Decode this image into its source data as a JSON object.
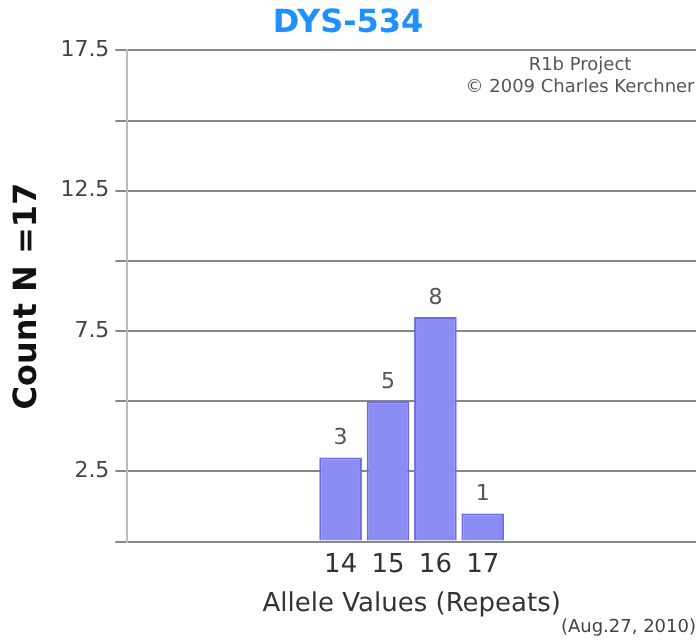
{
  "chart_data": {
    "type": "bar",
    "title": "DYS-534",
    "xlabel": "Allele Values (Repeats)",
    "ylabel": "Count N =17",
    "categories": [
      null,
      null,
      null,
      null,
      "14",
      "15",
      "16",
      "17",
      null,
      null,
      null,
      null
    ],
    "values": [
      0,
      0,
      0,
      0,
      3,
      5,
      8,
      1,
      0,
      0,
      0,
      0
    ],
    "value_labels": [
      null,
      null,
      null,
      null,
      "3",
      "5",
      "8",
      "1",
      null,
      null,
      null,
      null
    ],
    "color": "#8c8cf5",
    "ylim": [
      0,
      17.5
    ],
    "yticks": [
      {
        "value": 0,
        "label": null
      },
      2.5,
      {
        "value": 5,
        "label": null
      },
      7.5,
      {
        "value": 10,
        "label": null
      },
      12.5,
      {
        "value": 15,
        "label": null
      },
      17.5
    ],
    "grid": "y",
    "annotations": [
      "R1b Project",
      "© 2009 Charles Kerchner",
      "(Aug.27, 2010)"
    ]
  }
}
